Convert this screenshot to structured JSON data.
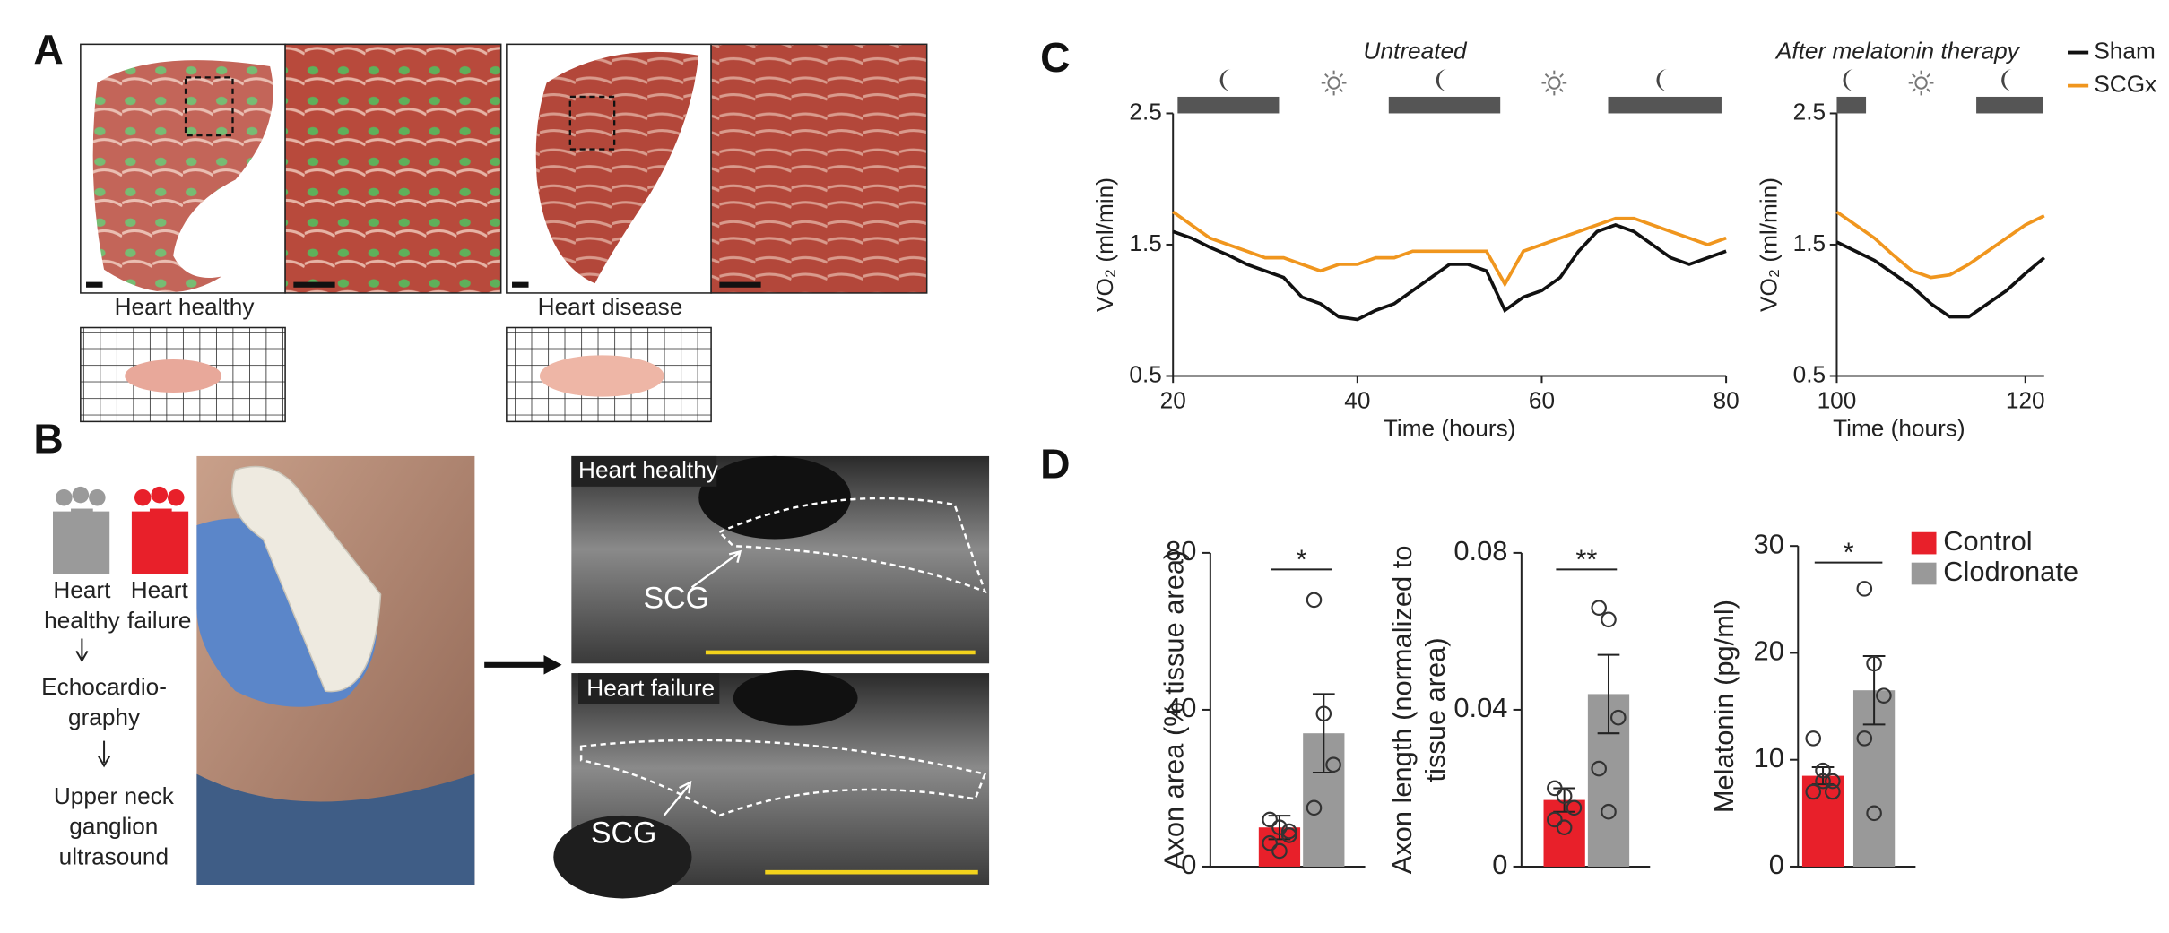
{
  "panels": {
    "A": {
      "label": "A",
      "left_caption": "Heart healthy",
      "right_caption": "Heart disease"
    },
    "B": {
      "label": "B",
      "groups": [
        [
          "Heart",
          "healthy"
        ],
        [
          "Heart",
          "failure"
        ]
      ],
      "steps": [
        [
          "Echocardio-",
          "graphy"
        ],
        [
          "Upper neck",
          "ganglion",
          "ultrasound"
        ]
      ],
      "images": [
        {
          "title": "Heart healthy",
          "structure": "SCG"
        },
        {
          "title": "Heart failure",
          "structure": "SCG"
        }
      ]
    },
    "C": {
      "label": "C"
    },
    "D": {
      "label": "D"
    }
  },
  "chart_data": [
    {
      "type": "line",
      "title": "Untreated",
      "x": [
        20,
        22,
        24,
        26,
        28,
        30,
        32,
        34,
        36,
        38,
        40,
        42,
        44,
        46,
        48,
        50,
        52,
        54,
        56,
        58,
        60,
        62,
        64,
        66,
        68,
        70,
        72,
        74,
        76,
        78,
        80
      ],
      "series": [
        {
          "color": "#111111",
          "values": [
            1.6,
            1.55,
            1.48,
            1.42,
            1.35,
            1.3,
            1.25,
            1.1,
            1.05,
            0.95,
            0.93,
            1.0,
            1.05,
            1.15,
            1.25,
            1.35,
            1.35,
            1.3,
            1.0,
            1.1,
            1.15,
            1.25,
            1.45,
            1.6,
            1.65,
            1.6,
            1.5,
            1.4,
            1.35,
            1.4,
            1.45
          ]
        },
        {
          "color": "#f0961e",
          "values": [
            1.75,
            1.65,
            1.55,
            1.5,
            1.45,
            1.4,
            1.4,
            1.35,
            1.3,
            1.35,
            1.35,
            1.4,
            1.4,
            1.45,
            1.45,
            1.45,
            1.45,
            1.45,
            1.2,
            1.45,
            1.5,
            1.55,
            1.6,
            1.65,
            1.7,
            1.7,
            1.65,
            1.6,
            1.55,
            1.5,
            1.55
          ]
        }
      ],
      "xlim": [
        20,
        80
      ],
      "xticks": [
        20,
        40,
        60,
        80
      ],
      "ylim": [
        0.5,
        2.5
      ],
      "yticks": [
        0.5,
        1.5,
        2.5
      ],
      "xlabel": "Time (hours)",
      "ylabel": "VO₂ (ml/min)",
      "night_periods": [
        [
          20.5,
          31.5
        ],
        [
          43.4,
          55.5
        ],
        [
          67.2,
          79.5
        ]
      ]
    },
    {
      "type": "line",
      "title": "After melatonin therapy",
      "x": [
        100,
        102,
        104,
        106,
        108,
        110,
        112,
        114,
        116,
        118,
        120,
        122
      ],
      "series": [
        {
          "name": "Sham",
          "color": "#111111",
          "values": [
            1.52,
            1.45,
            1.38,
            1.28,
            1.18,
            1.05,
            0.95,
            0.95,
            1.05,
            1.15,
            1.28,
            1.4
          ]
        },
        {
          "name": "SCGx",
          "color": "#f0961e",
          "values": [
            1.75,
            1.65,
            1.55,
            1.42,
            1.3,
            1.25,
            1.27,
            1.35,
            1.45,
            1.55,
            1.65,
            1.72
          ]
        }
      ],
      "xlim": [
        100,
        122
      ],
      "xticks": [
        100,
        120
      ],
      "ylim": [
        0.5,
        2.5
      ],
      "yticks": [
        0.5,
        1.5,
        2.5
      ],
      "xlabel": "Time (hours)",
      "ylabel": "VO₂ (ml/min)",
      "night_periods": [
        [
          100,
          103.1
        ],
        [
          114.8,
          121.9
        ]
      ],
      "legend": "right"
    },
    {
      "type": "bar",
      "categories": [
        null,
        null
      ],
      "values": [
        10,
        34
      ],
      "errors": [
        3,
        10
      ],
      "colors": [
        "#e8202a",
        "#999999"
      ],
      "points": [
        [
          12,
          10,
          8,
          6,
          4,
          9
        ],
        [
          68,
          39,
          26,
          15
        ]
      ],
      "ylim": [
        0,
        80
      ],
      "yticks": [
        0,
        40,
        80
      ],
      "ylabel": "Axon area (% tissue area)",
      "significance": "*"
    },
    {
      "type": "bar",
      "categories": [
        null,
        null
      ],
      "values": [
        0.017,
        0.044
      ],
      "errors": [
        0.003,
        0.01
      ],
      "colors": [
        "#e8202a",
        "#999999"
      ],
      "points": [
        [
          0.02,
          0.018,
          0.015,
          0.012,
          0.01
        ],
        [
          0.066,
          0.063,
          0.038,
          0.025,
          0.014
        ]
      ],
      "ylim": [
        0,
        0.08
      ],
      "yticks": [
        0,
        0.04,
        0.08
      ],
      "ylabel": [
        "Axon length (normalized to",
        "tissue area)"
      ],
      "significance": "**"
    },
    {
      "type": "bar",
      "categories": [
        null,
        null
      ],
      "values": [
        8.5,
        16.5
      ],
      "errors": [
        0.8,
        3.2
      ],
      "colors": [
        "#e8202a",
        "#999999"
      ],
      "points": [
        [
          12,
          9,
          8,
          7,
          8,
          7
        ],
        [
          26,
          19,
          16,
          12,
          5
        ]
      ],
      "ylim": [
        0,
        30
      ],
      "yticks": [
        0,
        10,
        20,
        30
      ],
      "ylabel": "Melatonin (pg/ml)",
      "significance": "*",
      "legend": {
        "labels": [
          "Control",
          "Clodronate"
        ],
        "position": "upper right"
      }
    }
  ]
}
